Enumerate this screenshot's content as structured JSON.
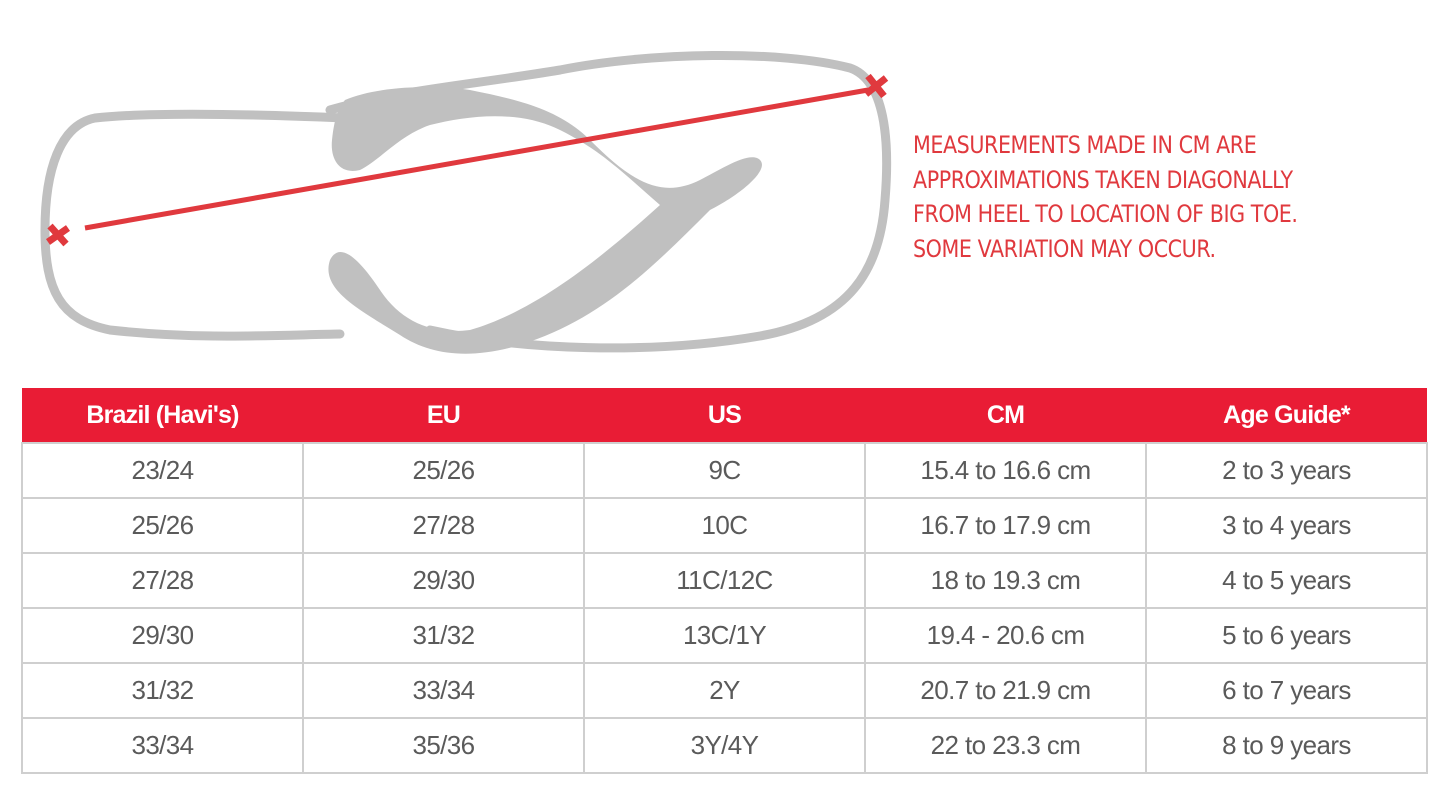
{
  "note_lines": [
    "MEASUREMENTS MADE IN CM ARE",
    "APPROXIMATIONS TAKEN DIAGONALLY",
    "FROM HEEL TO LOCATION OF BIG TOE.",
    "SOME VARIATION MAY OCCUR."
  ],
  "colors": {
    "accent": "#e91c35",
    "outline": "#c0c0c0",
    "text": "#5a5a5a"
  },
  "table": {
    "headers": [
      "Brazil (Havi's)",
      "EU",
      "US",
      "CM",
      "Age Guide*"
    ],
    "rows": [
      [
        "23/24",
        "25/26",
        "9C",
        "15.4 to 16.6 cm",
        "2 to 3 years"
      ],
      [
        "25/26",
        "27/28",
        "10C",
        "16.7 to 17.9 cm",
        "3 to 4 years"
      ],
      [
        "27/28",
        "29/30",
        "11C/12C",
        "18 to 19.3 cm",
        "4 to 5 years"
      ],
      [
        "29/30",
        "31/32",
        "13C/1Y",
        "19.4 - 20.6 cm",
        "5 to 6 years"
      ],
      [
        "31/32",
        "33/34",
        "2Y",
        "20.7 to 21.9 cm",
        "6 to 7 years"
      ],
      [
        "33/34",
        "35/36",
        "3Y/4Y",
        "22 to 23.3 cm",
        "8 to 9 years"
      ]
    ]
  }
}
